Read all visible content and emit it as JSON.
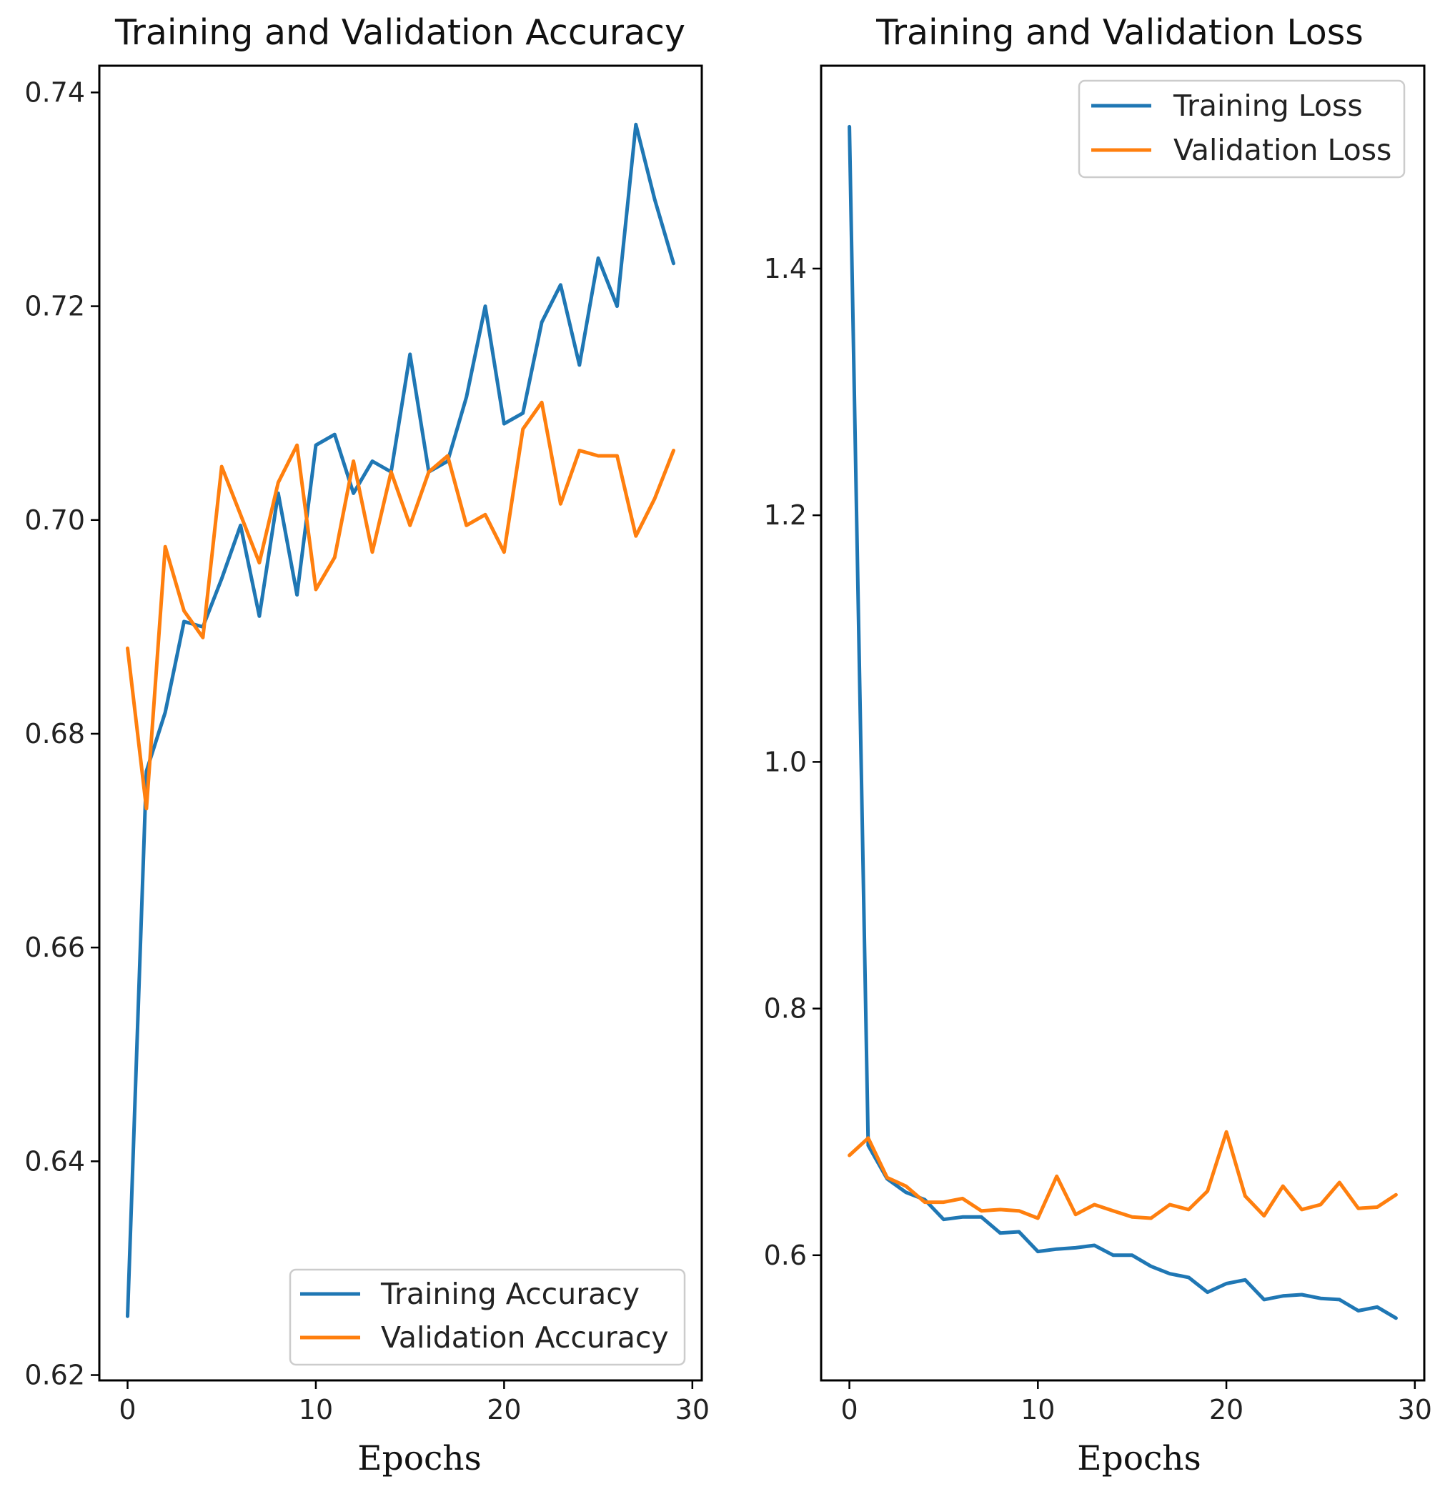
{
  "chart_data": [
    {
      "type": "line",
      "title": "Training and Validation Accuracy",
      "xlabel": "Epochs",
      "ylabel": "",
      "xlim": [
        -1.5,
        30.5
      ],
      "ylim": [
        0.6195,
        0.7425
      ],
      "xticks": [
        0,
        10,
        20,
        30
      ],
      "xtick_labels": [
        "0",
        "10",
        "20",
        "30"
      ],
      "yticks": [
        0.62,
        0.64,
        0.66,
        0.68,
        0.7,
        0.72,
        0.74
      ],
      "ytick_labels": [
        "0.62",
        "0.64",
        "0.66",
        "0.68",
        "0.70",
        "0.72",
        "0.74"
      ],
      "legend_position": "lower-right",
      "grid": false,
      "x": [
        0,
        1,
        2,
        3,
        4,
        5,
        6,
        7,
        8,
        9,
        10,
        11,
        12,
        13,
        14,
        15,
        16,
        17,
        18,
        19,
        20,
        21,
        22,
        23,
        24,
        25,
        26,
        27,
        28,
        29
      ],
      "series": [
        {
          "name": "Training Accuracy",
          "color": "#1f77b4",
          "values": [
            0.6255,
            0.6765,
            0.682,
            0.6905,
            0.69,
            0.6945,
            0.6995,
            0.691,
            0.7025,
            0.693,
            0.707,
            0.708,
            0.7025,
            0.7055,
            0.7045,
            0.7155,
            0.7045,
            0.7055,
            0.7115,
            0.72,
            0.709,
            0.71,
            0.7185,
            0.722,
            0.7145,
            0.7245,
            0.72,
            0.737,
            0.73,
            0.724
          ]
        },
        {
          "name": "Validation Accuracy",
          "color": "#ff7f0e",
          "values": [
            0.688,
            0.673,
            0.6975,
            0.6915,
            0.689,
            0.705,
            0.7005,
            0.696,
            0.7035,
            0.707,
            0.6935,
            0.6965,
            0.7055,
            0.697,
            0.7045,
            0.6995,
            0.7045,
            0.706,
            0.6995,
            0.7005,
            0.697,
            0.7085,
            0.711,
            0.7015,
            0.7065,
            0.706,
            0.706,
            0.6985,
            0.702,
            0.7065
          ]
        }
      ]
    },
    {
      "type": "line",
      "title": "Training and Validation Loss",
      "xlabel": "Epochs",
      "ylabel": "",
      "xlim": [
        -1.5,
        30.5
      ],
      "ylim": [
        0.4985,
        1.5645
      ],
      "xticks": [
        0,
        10,
        20,
        30
      ],
      "xtick_labels": [
        "0",
        "10",
        "20",
        "30"
      ],
      "yticks": [
        0.6,
        0.8,
        1.0,
        1.2,
        1.4
      ],
      "ytick_labels": [
        "0.6",
        "0.8",
        "1.0",
        "1.2",
        "1.4"
      ],
      "legend_position": "upper-right",
      "grid": false,
      "x": [
        0,
        1,
        2,
        3,
        4,
        5,
        6,
        7,
        8,
        9,
        10,
        11,
        12,
        13,
        14,
        15,
        16,
        17,
        18,
        19,
        20,
        21,
        22,
        23,
        24,
        25,
        26,
        27,
        28,
        29
      ],
      "series": [
        {
          "name": "Training Loss",
          "color": "#1f77b4",
          "values": [
            1.515,
            0.689,
            0.662,
            0.651,
            0.645,
            0.629,
            0.631,
            0.631,
            0.618,
            0.619,
            0.603,
            0.605,
            0.606,
            0.608,
            0.6,
            0.6,
            0.591,
            0.585,
            0.582,
            0.57,
            0.577,
            0.58,
            0.564,
            0.567,
            0.568,
            0.565,
            0.564,
            0.555,
            0.558,
            0.549
          ]
        },
        {
          "name": "Validation Loss",
          "color": "#ff7f0e",
          "values": [
            0.681,
            0.695,
            0.663,
            0.656,
            0.643,
            0.643,
            0.646,
            0.636,
            0.637,
            0.636,
            0.63,
            0.664,
            0.633,
            0.641,
            0.636,
            0.631,
            0.63,
            0.641,
            0.637,
            0.652,
            0.7,
            0.648,
            0.632,
            0.656,
            0.637,
            0.641,
            0.659,
            0.638,
            0.639,
            0.649
          ]
        }
      ]
    }
  ]
}
